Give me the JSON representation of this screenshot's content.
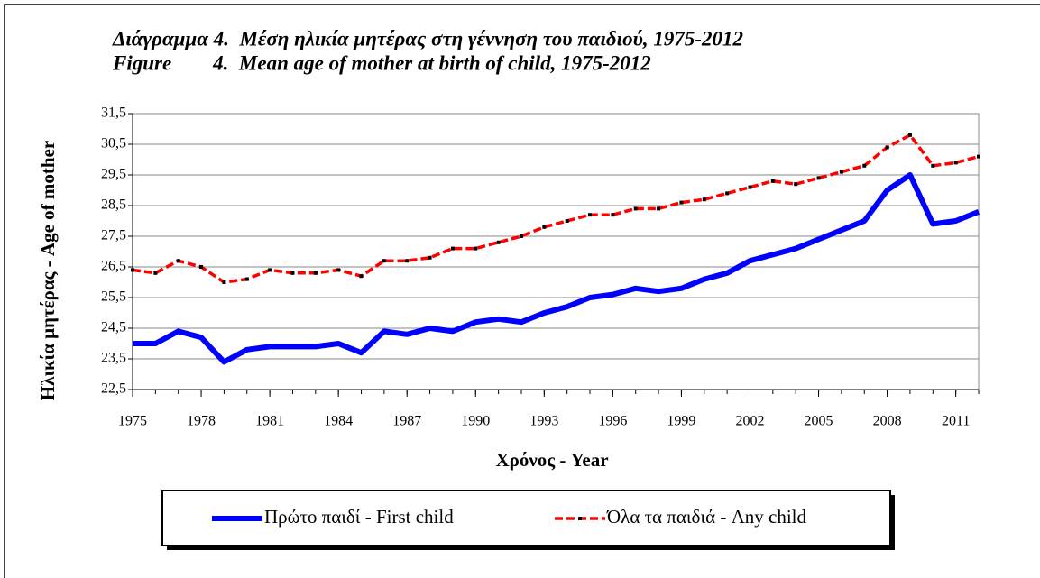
{
  "chart_data": {
    "type": "line",
    "title": [
      "Διάγραμμα 4.  Μέση ηλικία μητέρας στη γέννηση του παιδιού, 1975-2012",
      "Figure        4.  Mean age of mother at birth of child, 1975-2012"
    ],
    "x_label": "Χρόνος - Year",
    "y_label": "Ηλικία μητέρας - Age of mother",
    "x": [
      1975,
      1976,
      1977,
      1978,
      1979,
      1980,
      1981,
      1982,
      1983,
      1984,
      1985,
      1986,
      1987,
      1988,
      1989,
      1990,
      1991,
      1992,
      1993,
      1994,
      1995,
      1996,
      1997,
      1998,
      1999,
      2000,
      2001,
      2002,
      2003,
      2004,
      2005,
      2006,
      2007,
      2008,
      2009,
      2010,
      2011,
      2012
    ],
    "series": [
      {
        "name": "Πρώτο παιδί - First child",
        "color": "#0000ff",
        "values": [
          24.0,
          24.0,
          24.4,
          24.2,
          23.4,
          23.8,
          23.9,
          23.9,
          23.9,
          24.0,
          23.7,
          24.4,
          24.3,
          24.5,
          24.4,
          24.7,
          24.8,
          24.7,
          25.0,
          25.2,
          25.5,
          25.6,
          25.8,
          25.7,
          25.8,
          26.1,
          26.3,
          26.7,
          26.9,
          27.1,
          27.4,
          27.7,
          28.0,
          29.0,
          29.5,
          27.9,
          28.0,
          28.3
        ]
      },
      {
        "name": "Όλα τα παιδιά - Any child",
        "color": "#ff0000",
        "values": [
          26.4,
          26.3,
          26.7,
          26.5,
          26.0,
          26.1,
          26.4,
          26.3,
          26.3,
          26.4,
          26.2,
          26.7,
          26.7,
          26.8,
          27.1,
          27.1,
          27.3,
          27.5,
          27.8,
          28.0,
          28.2,
          28.2,
          28.4,
          28.4,
          28.6,
          28.7,
          28.9,
          29.1,
          29.3,
          29.2,
          29.4,
          29.6,
          29.8,
          30.4,
          30.8,
          29.8,
          29.9,
          30.1
        ]
      }
    ],
    "xlim": [
      1975,
      2012
    ],
    "xticks": [
      1975,
      1978,
      1981,
      1984,
      1987,
      1990,
      1993,
      1996,
      1999,
      2002,
      2005,
      2008,
      2011
    ],
    "ylim": [
      22.5,
      31.5
    ],
    "yticks": [
      {
        "value": 22.5,
        "label": "22,5"
      },
      {
        "value": 23.5,
        "label": "23,5"
      },
      {
        "value": 24.5,
        "label": "24,5"
      },
      {
        "value": 25.5,
        "label": "25,5"
      },
      {
        "value": 26.5,
        "label": "26,5"
      },
      {
        "value": 27.5,
        "label": "27,5"
      },
      {
        "value": 28.5,
        "label": "28,5"
      },
      {
        "value": 29.5,
        "label": "29,5"
      },
      {
        "value": 30.5,
        "label": "30,5"
      },
      {
        "value": 31.5,
        "label": "31,5"
      }
    ],
    "grid": true,
    "legend": "bottom"
  }
}
